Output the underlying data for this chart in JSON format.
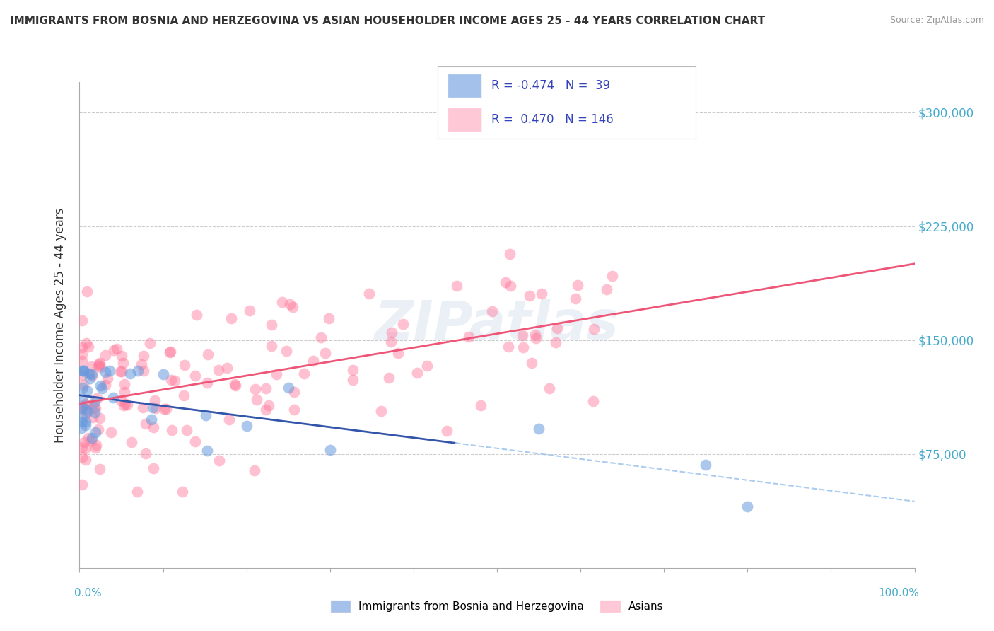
{
  "title": "IMMIGRANTS FROM BOSNIA AND HERZEGOVINA VS ASIAN HOUSEHOLDER INCOME AGES 25 - 44 YEARS CORRELATION CHART",
  "source": "Source: ZipAtlas.com",
  "ylabel": "Householder Income Ages 25 - 44 years",
  "legend_blue_r": "-0.474",
  "legend_blue_n": "39",
  "legend_pink_r": "0.470",
  "legend_pink_n": "146",
  "watermark": "ZIPatlas",
  "blue_color": "#6699DD",
  "pink_color": "#FF7799",
  "blue_line_color": "#3355AA",
  "pink_line_color": "#EE5577",
  "blue_dash_color": "#AACCEE",
  "background_color": "#FFFFFF",
  "grid_color": "#CCCCCC",
  "title_color": "#333333",
  "source_color": "#999999",
  "ylabel_color": "#333333",
  "right_tick_color": "#44AACC",
  "bottom_label_color": "#44AACC",
  "legend_text_color": "#3344BB"
}
